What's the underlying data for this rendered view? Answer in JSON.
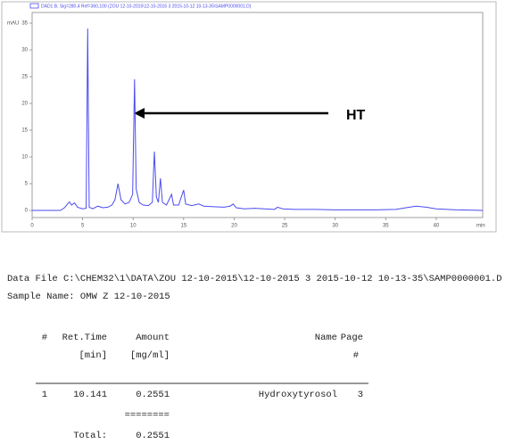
{
  "chart_data": {
    "type": "line",
    "title": "DAD1 B, Sig=280,4 Ref=360,100 (ZOU 12-10-2015\\12-10-2015 3  2015-10-12 10-13-35\\SAMP0000001.D)",
    "y_label": "mAU",
    "x_label": "min",
    "x": [
      0,
      2.8,
      3.2,
      3.5,
      3.7,
      3.9,
      4.2,
      4.5,
      5.0,
      5.35,
      5.5,
      5.65,
      6.0,
      6.5,
      7.0,
      7.5,
      7.9,
      8.2,
      8.5,
      8.8,
      9.2,
      9.6,
      9.95,
      10.14,
      10.3,
      10.6,
      11.0,
      11.5,
      11.9,
      12.1,
      12.3,
      12.5,
      12.7,
      12.9,
      13.3,
      13.8,
      14.0,
      14.5,
      15.0,
      15.2,
      15.8,
      16.5,
      17.0,
      18.0,
      19.0,
      19.6,
      19.9,
      20.2,
      21,
      22,
      23,
      24,
      24.3,
      24.8,
      26,
      28,
      30,
      32,
      34,
      36,
      37,
      38,
      39,
      40,
      42,
      44.6
    ],
    "series": [
      {
        "name": "DAD1 B, Sig=280,4 Ref=360,100 (ZOU 12-10-2015\\12-10-2015 3  2015-10-12 10-13-35\\SAMP0000001.D)",
        "color": "#4b4bef",
        "values": [
          0,
          0,
          0.5,
          1.2,
          1.6,
          1.0,
          1.4,
          0.6,
          0.3,
          0.4,
          34,
          0.6,
          0.3,
          0.8,
          0.5,
          0.6,
          1.0,
          2.0,
          5.0,
          2.0,
          1.2,
          1.5,
          3,
          24.5,
          4,
          1.5,
          1.0,
          0.9,
          1.5,
          11,
          2.5,
          1.5,
          6,
          1.5,
          1.0,
          3,
          1.0,
          1.0,
          3.8,
          1.2,
          0.9,
          1.2,
          0.8,
          0.7,
          0.6,
          0.8,
          1.2,
          0.5,
          0.3,
          0.4,
          0.3,
          0.2,
          0.6,
          0.3,
          0.2,
          0.2,
          0.1,
          0.1,
          0.1,
          0.2,
          0.5,
          0.8,
          0.6,
          0.3,
          0.1,
          0
        ]
      }
    ],
    "xlim": [
      0,
      44.6
    ],
    "xticks": [
      0,
      5,
      10,
      15,
      20,
      25,
      30,
      35,
      40
    ],
    "ylim": [
      -1.33,
      37
    ],
    "yticks": [
      0,
      5,
      10,
      15,
      20,
      25,
      30,
      35
    ],
    "annotation": "HT"
  },
  "report": {
    "data_file": "Data File C:\\CHEM32\\1\\DATA\\ZOU 12-10-2015\\12-10-2015 3  2015-10-12 10-13-35\\SAMP0000001.D",
    "sample_name": "Sample Name: OMW Z 12-10-2015",
    "columns": [
      {
        "title": "#"
      },
      {
        "title": "Ret.Time",
        "unit": "[min]"
      },
      {
        "title": "Amount",
        "unit": "[mg/ml]"
      },
      {
        "title": "Name"
      },
      {
        "title": "Page",
        "unit": "#"
      }
    ],
    "rows": [
      [
        1,
        10.141,
        0.2551,
        "Hydroxytyrosol",
        3
      ]
    ],
    "total": {
      "rule": "========",
      "label": "Total:",
      "value": 0.2551
    }
  }
}
